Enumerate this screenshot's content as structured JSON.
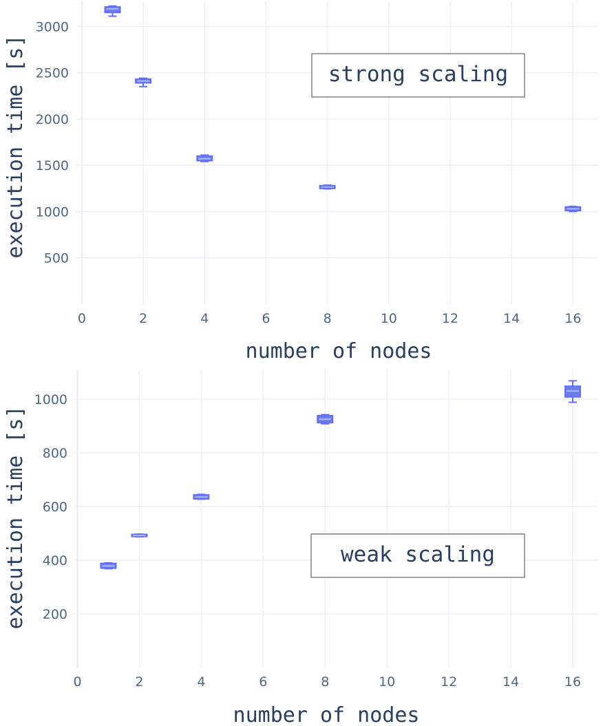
{
  "chart_data": [
    {
      "type": "box",
      "annotation": "strong scaling",
      "xlabel": "number of nodes",
      "ylabel": "execution time [s]",
      "xlim": [
        -0.2,
        16.8
      ],
      "ylim": [
        0,
        3270
      ],
      "xticks": [
        0,
        2,
        4,
        6,
        8,
        10,
        12,
        14,
        16
      ],
      "yticks": [
        500,
        1000,
        1500,
        2000,
        2500,
        3000
      ],
      "grid": true,
      "boxes": [
        {
          "x": 1,
          "min": 3110,
          "q1": 3150,
          "median": 3190,
          "q3": 3210,
          "max": 3220
        },
        {
          "x": 2,
          "min": 2350,
          "q1": 2390,
          "median": 2410,
          "q3": 2430,
          "max": 2440
        },
        {
          "x": 4,
          "min": 1540,
          "q1": 1550,
          "median": 1570,
          "q3": 1600,
          "max": 1610
        },
        {
          "x": 8,
          "min": 1245,
          "q1": 1250,
          "median": 1265,
          "q3": 1280,
          "max": 1285
        },
        {
          "x": 16,
          "min": 1000,
          "q1": 1010,
          "median": 1030,
          "q3": 1050,
          "max": 1055
        }
      ]
    },
    {
      "type": "box",
      "annotation": "weak scaling",
      "xlabel": "number of nodes",
      "ylabel": "execution time [s]",
      "xlim": [
        -0.1,
        16.8
      ],
      "ylim": [
        0,
        1110
      ],
      "xticks": [
        0,
        2,
        4,
        6,
        8,
        10,
        12,
        14,
        16
      ],
      "yticks": [
        200,
        400,
        600,
        800,
        1000
      ],
      "grid": true,
      "boxes": [
        {
          "x": 1,
          "min": 368,
          "q1": 370,
          "median": 378,
          "q3": 388,
          "max": 390
        },
        {
          "x": 2,
          "min": 487,
          "q1": 488,
          "median": 492,
          "q3": 496,
          "max": 497
        },
        {
          "x": 4,
          "min": 627,
          "q1": 628,
          "median": 635,
          "q3": 643,
          "max": 645
        },
        {
          "x": 8,
          "min": 908,
          "q1": 912,
          "median": 925,
          "q3": 938,
          "max": 942
        },
        {
          "x": 16,
          "min": 988,
          "q1": 1008,
          "median": 1030,
          "q3": 1048,
          "max": 1068
        }
      ]
    }
  ]
}
